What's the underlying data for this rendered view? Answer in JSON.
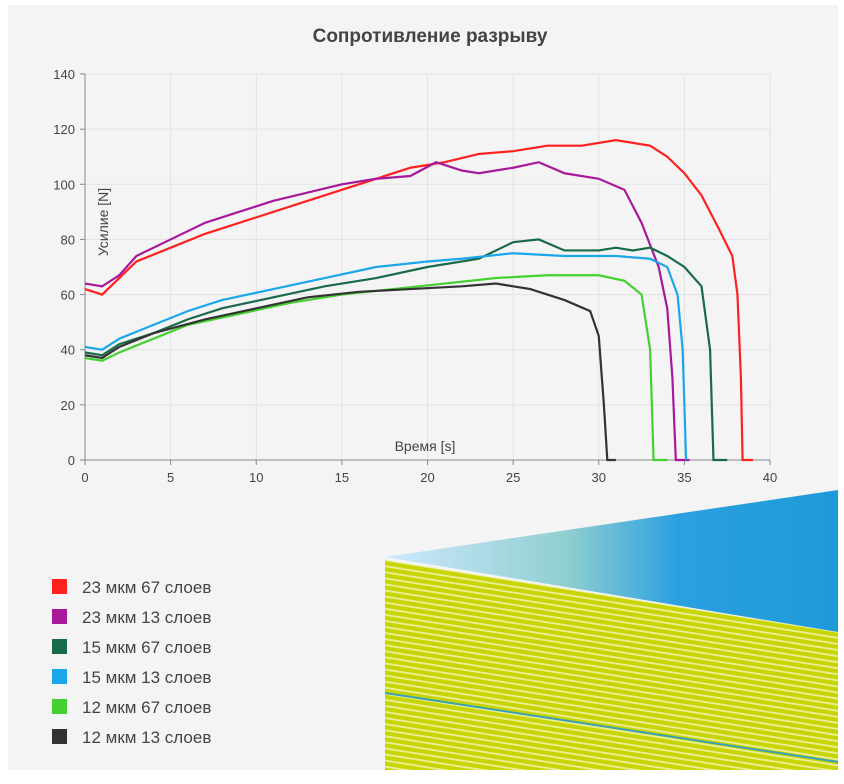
{
  "chart_data": {
    "type": "line",
    "title": "Сопротивление разрыву",
    "x_label": "Время  [s]",
    "y_label": "Усилие [N]",
    "xlim": [
      0,
      40
    ],
    "xticks": [
      0,
      5,
      10,
      15,
      20,
      25,
      30,
      35,
      40
    ],
    "ylim": [
      0,
      140
    ],
    "yticks": [
      0,
      20,
      40,
      60,
      80,
      100,
      120,
      140
    ],
    "grid": true,
    "series": [
      {
        "name": "23 мкм 67 слоев",
        "color": "#ff2020",
        "x": [
          0,
          1,
          2,
          3,
          5,
          7,
          10,
          13,
          15,
          17,
          19,
          21,
          23,
          25,
          27,
          29,
          31,
          33,
          34,
          35,
          36,
          37,
          37.8,
          38.1,
          38.3,
          38.4,
          39
        ],
        "values": [
          62,
          60,
          66,
          72,
          77,
          82,
          88,
          94,
          98,
          102,
          106,
          108,
          111,
          112,
          114,
          114,
          116,
          114,
          110,
          104,
          96,
          84,
          74,
          60,
          30,
          0,
          0
        ]
      },
      {
        "name": "23 мкм 13 слоев",
        "color": "#a8189a",
        "x": [
          0,
          1,
          2,
          3,
          5,
          7,
          9,
          11,
          13,
          15,
          17,
          19,
          20.5,
          22,
          23,
          25,
          26.5,
          28,
          30,
          31.5,
          32.5,
          33.5,
          34,
          34.3,
          34.5,
          35.3
        ],
        "values": [
          64,
          63,
          67,
          74,
          80,
          86,
          90,
          94,
          97,
          100,
          102,
          103,
          108,
          105,
          104,
          106,
          108,
          104,
          102,
          98,
          86,
          70,
          55,
          30,
          0,
          0
        ]
      },
      {
        "name": "15 мкм 67 слоев",
        "color": "#1a6a4a",
        "x": [
          0,
          1,
          2,
          4,
          6,
          8,
          11,
          14,
          17,
          20,
          23,
          25,
          26.5,
          28,
          30,
          31,
          32,
          33,
          34,
          35,
          36,
          36.5,
          36.7,
          37.5
        ],
        "values": [
          39,
          38,
          42,
          46,
          51,
          55,
          59,
          63,
          66,
          70,
          73,
          79,
          80,
          76,
          76,
          77,
          76,
          77,
          74,
          70,
          63,
          40,
          0,
          0
        ]
      },
      {
        "name": "15 мкм 13 слоев",
        "color": "#1ca6ea",
        "x": [
          0,
          1,
          2,
          4,
          6,
          8,
          11,
          14,
          17,
          20,
          22,
          25,
          28,
          31,
          33,
          34,
          34.6,
          34.9,
          35.1
        ],
        "values": [
          41,
          40,
          44,
          49,
          54,
          58,
          62,
          66,
          70,
          72,
          73,
          75,
          74,
          74,
          73,
          70,
          60,
          40,
          0
        ]
      },
      {
        "name": "12 мкм 67 слоев",
        "color": "#44d030",
        "x": [
          0,
          1,
          2,
          4,
          6,
          9,
          12,
          15,
          18,
          21,
          24,
          27,
          30,
          31.5,
          32.5,
          33,
          33.2,
          34
        ],
        "values": [
          37,
          36,
          39,
          44,
          49,
          53,
          57,
          60,
          62,
          64,
          66,
          67,
          67,
          65,
          60,
          40,
          0,
          0
        ]
      },
      {
        "name": "12 мкм 13 слоев",
        "color": "#333333",
        "x": [
          0,
          1,
          2,
          4,
          7,
          10,
          13,
          16,
          19,
          22,
          24,
          26,
          28,
          29.5,
          30,
          30.3,
          30.5,
          31
        ],
        "values": [
          38,
          37,
          41,
          46,
          51,
          55,
          59,
          61,
          62,
          63,
          64,
          62,
          58,
          54,
          45,
          20,
          0,
          0
        ]
      }
    ]
  }
}
